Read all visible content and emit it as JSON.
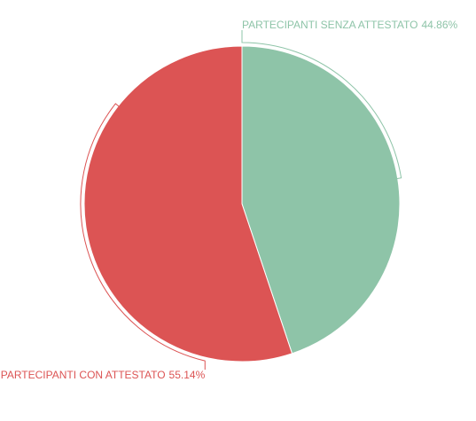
{
  "chart_data": {
    "type": "pie",
    "categories": [
      "PARTECIPANTI SENZA ATTESTATO",
      "PARTECIPANTI CON ATTESTATO"
    ],
    "values": [
      44.86,
      55.14
    ],
    "value_labels": [
      "44.86%",
      "55.14%"
    ],
    "colors": [
      "#8ec4a8",
      "#dc5454"
    ]
  }
}
